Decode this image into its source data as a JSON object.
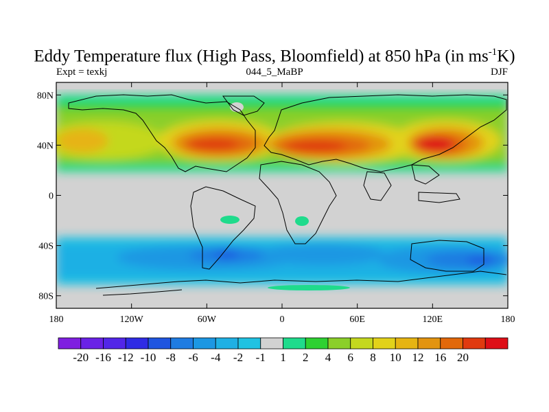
{
  "title": {
    "main_prefix": "Eddy Temperature flux (High Pass, Bloomfield) at 850 hPa (in ms",
    "superscript": "-1",
    "main_suffix": "K)"
  },
  "subtitle": {
    "left": "Expt = texkj",
    "center": "044_5_MaBP",
    "right": "DJF"
  },
  "map": {
    "lat_range": [
      -90,
      90
    ],
    "lon_range": [
      -180,
      180
    ],
    "ocean_fill": "#d2d2d2",
    "lat_tick_labels": [
      {
        "lat": 80,
        "label": "80N"
      },
      {
        "lat": 40,
        "label": "40N"
      },
      {
        "lat": 0,
        "label": "0"
      },
      {
        "lat": -40,
        "label": "40S"
      },
      {
        "lat": -80,
        "label": "80S"
      }
    ],
    "lon_tick_labels": [
      {
        "lon": -180,
        "label": "180"
      },
      {
        "lon": -120,
        "label": "120W"
      },
      {
        "lon": -60,
        "label": "60W"
      },
      {
        "lon": 0,
        "label": "0"
      },
      {
        "lon": 60,
        "label": "60E"
      },
      {
        "lon": 120,
        "label": "120E"
      },
      {
        "lon": 180,
        "label": "180"
      }
    ]
  },
  "colorbar": {
    "colors": [
      "#7f1fe0",
      "#6a22e6",
      "#5226e8",
      "#2f2be4",
      "#1f55e0",
      "#1f7ce2",
      "#1c97e3",
      "#1fb0e4",
      "#20c2e2",
      "#d2d2d2",
      "#1fdb8c",
      "#2ed132",
      "#8bcf2a",
      "#c4d81f",
      "#e2d21a",
      "#e6b412",
      "#e39410",
      "#e2680a",
      "#e03a0f",
      "#de0f17"
    ],
    "labels": [
      "-20",
      "-16",
      "-12",
      "-10",
      "-8",
      "-6",
      "-4",
      "-2",
      "-1",
      "1",
      "2",
      "4",
      "6",
      "8",
      "10",
      "12",
      "16",
      "20"
    ]
  }
}
